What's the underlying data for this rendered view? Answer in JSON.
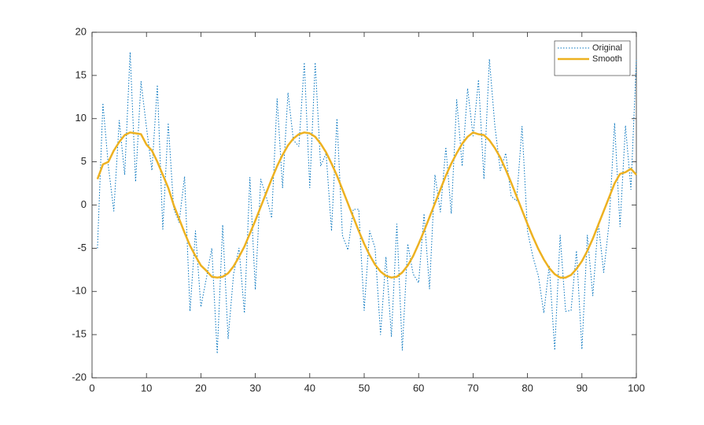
{
  "chart_data": {
    "type": "line",
    "x": [
      1,
      2,
      3,
      4,
      5,
      6,
      7,
      8,
      9,
      10,
      11,
      12,
      13,
      14,
      15,
      16,
      17,
      18,
      19,
      20,
      21,
      22,
      23,
      24,
      25,
      26,
      27,
      28,
      29,
      30,
      31,
      32,
      33,
      34,
      35,
      36,
      37,
      38,
      39,
      40,
      41,
      42,
      43,
      44,
      45,
      46,
      47,
      48,
      49,
      50,
      51,
      52,
      53,
      54,
      55,
      56,
      57,
      58,
      59,
      60,
      61,
      62,
      63,
      64,
      65,
      66,
      67,
      68,
      69,
      70,
      71,
      72,
      73,
      74,
      75,
      76,
      77,
      78,
      79,
      80,
      81,
      82,
      83,
      84,
      85,
      86,
      87,
      88,
      89,
      90,
      91,
      92,
      93,
      94,
      95,
      96,
      97,
      98,
      99,
      100
    ],
    "series": [
      {
        "name": "Original",
        "color": "#0072BD",
        "style": "dotted",
        "width": 1,
        "values": [
          -5.0,
          11.8,
          4.5,
          -0.7,
          9.8,
          3.5,
          17.7,
          2.7,
          14.3,
          9.0,
          4.0,
          13.9,
          -2.8,
          9.5,
          -0.4,
          -2.0,
          3.3,
          -12.3,
          -3.0,
          -11.8,
          -8.5,
          -5.0,
          -17.2,
          -2.3,
          -15.5,
          -8.0,
          -5.0,
          -12.5,
          3.2,
          -9.8,
          3.0,
          1.0,
          -1.5,
          12.3,
          2.0,
          13.0,
          7.5,
          6.8,
          16.5,
          2.0,
          16.5,
          4.5,
          6.0,
          -3.0,
          10.0,
          -3.5,
          -5.2,
          -0.5,
          -0.5,
          -12.2,
          -3.0,
          -5.0,
          -15.0,
          -6.0,
          -15.2,
          -2.2,
          -16.8,
          -4.5,
          -8.0,
          -9.0,
          -1.0,
          -9.7,
          3.5,
          -0.8,
          6.7,
          -1.0,
          12.2,
          4.5,
          13.5,
          8.0,
          14.5,
          3.0,
          16.9,
          9.2,
          4.0,
          6.0,
          1.0,
          0.5,
          9.1,
          -3.0,
          -6.0,
          -8.2,
          -12.5,
          -7.0,
          -16.8,
          -3.5,
          -12.3,
          -12.2,
          -5.3,
          -16.7,
          -3.5,
          -10.5,
          -2.0,
          -7.8,
          -2.0,
          9.5,
          -2.5,
          9.2,
          1.8,
          16.8
        ]
      },
      {
        "name": "Smooth",
        "color": "#EDB120",
        "style": "solid",
        "width": 2.5,
        "values": [
          3.0,
          4.7,
          5.0,
          6.3,
          7.3,
          8.1,
          8.4,
          8.3,
          8.2,
          7.0,
          6.3,
          5.0,
          3.5,
          2.0,
          0.0,
          -1.6,
          -3.2,
          -4.7,
          -5.9,
          -7.0,
          -7.6,
          -8.3,
          -8.4,
          -8.3,
          -7.9,
          -7.1,
          -6.0,
          -4.8,
          -3.3,
          -1.8,
          -0.2,
          1.4,
          3.0,
          4.5,
          5.8,
          6.9,
          7.7,
          8.2,
          8.4,
          8.3,
          7.9,
          7.1,
          6.1,
          4.8,
          3.4,
          1.8,
          0.2,
          -1.4,
          -3.0,
          -4.5,
          -5.8,
          -6.9,
          -7.7,
          -8.2,
          -8.4,
          -8.3,
          -7.8,
          -7.0,
          -5.9,
          -4.5,
          -3.0,
          -1.4,
          0.2,
          1.8,
          3.4,
          4.8,
          6.0,
          7.1,
          7.9,
          8.4,
          8.2,
          8.1,
          7.5,
          6.6,
          5.5,
          4.1,
          2.6,
          1.0,
          -0.6,
          -2.2,
          -3.7,
          -5.1,
          -6.3,
          -7.3,
          -8.0,
          -8.4,
          -8.4,
          -8.1,
          -7.4,
          -6.5,
          -5.3,
          -3.9,
          -2.3,
          -0.7,
          0.9,
          2.5,
          3.6,
          3.8,
          4.2,
          3.5
        ]
      }
    ],
    "xlim": [
      0,
      100
    ],
    "xticks": [
      0,
      10,
      20,
      30,
      40,
      50,
      60,
      70,
      80,
      90,
      100
    ],
    "ylim": [
      -20,
      20
    ],
    "yticks": [
      -20,
      -15,
      -10,
      -5,
      0,
      5,
      10,
      15,
      20
    ],
    "grid": false,
    "legend": "northeast"
  }
}
